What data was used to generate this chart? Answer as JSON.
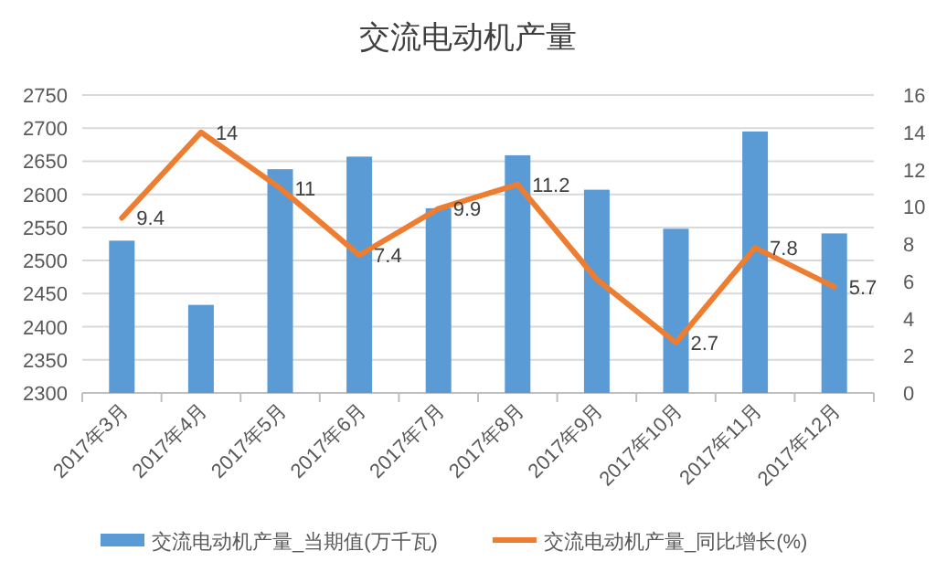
{
  "chart_data": {
    "type": "bar",
    "title": "交流电动机产量",
    "categories": [
      "2017年3月",
      "2017年4月",
      "2017年5月",
      "2017年6月",
      "2017年7月",
      "2017年8月",
      "2017年9月",
      "2017年10月",
      "2017年11月",
      "2017年12月"
    ],
    "series": [
      {
        "name": "交流电动机产量_当期值(万千瓦)",
        "color": "#5b9bd5",
        "values": [
          2530,
          2433,
          2638,
          2657,
          2579,
          2659,
          2607,
          2548,
          2695,
          2541
        ]
      },
      {
        "name": "交流电动机产量_同比增长(%)",
        "type": "line",
        "axis": "y2",
        "color": "#ed7d31",
        "values": [
          9.4,
          14,
          11,
          7.4,
          9.9,
          11.2,
          6.1,
          2.7,
          7.8,
          5.7
        ],
        "value_labels": [
          "9.4",
          "14",
          "11",
          "7.4",
          "9.9",
          "11.2",
          null,
          "2.7",
          "7.8",
          "5.7"
        ]
      }
    ],
    "ylim": [
      2300,
      2750
    ],
    "yticks": [
      2300,
      2350,
      2400,
      2450,
      2500,
      2550,
      2600,
      2650,
      2700,
      2750
    ],
    "y2lim": [
      0,
      16
    ],
    "y2ticks": [
      0,
      2,
      4,
      6,
      8,
      10,
      12,
      14,
      16
    ],
    "grid": "y",
    "legend": "bottom"
  }
}
